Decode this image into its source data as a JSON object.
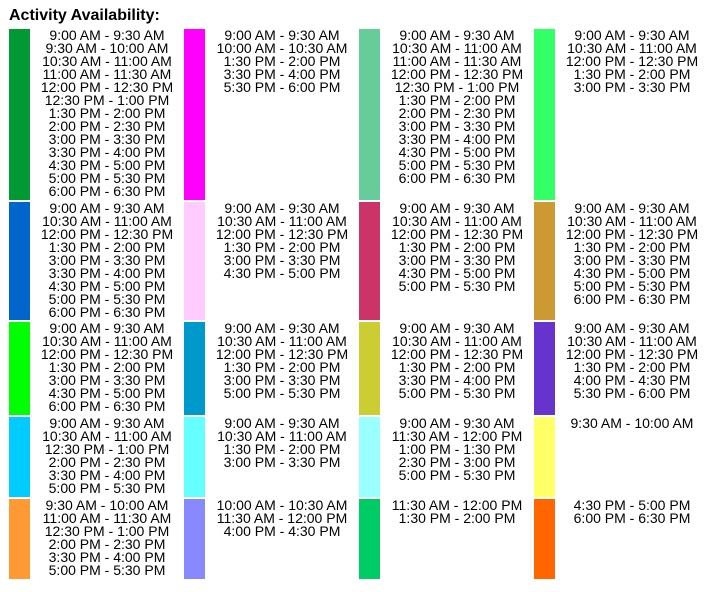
{
  "title": "Activity Availability:",
  "rows": [
    [
      {
        "color": "#009933",
        "times": [
          "9:00 AM - 9:30 AM",
          "9:30 AM - 10:00 AM",
          "10:30 AM - 11:00 AM",
          "11:00 AM - 11:30 AM",
          "12:00 PM - 12:30 PM",
          "12:30 PM - 1:00 PM",
          "1:30 PM - 2:00 PM",
          "2:00 PM - 2:30 PM",
          "3:00 PM - 3:30 PM",
          "3:30 PM - 4:00 PM",
          "4:30 PM - 5:00 PM",
          "5:00 PM - 5:30 PM",
          "6:00 PM - 6:30 PM"
        ]
      },
      {
        "color": "#ff00ff",
        "times": [
          "9:00 AM - 9:30 AM",
          "10:00 AM - 10:30 AM",
          "1:30 PM - 2:00 PM",
          "3:30 PM - 4:00 PM",
          "5:30 PM - 6:00 PM"
        ]
      },
      {
        "color": "#66cc99",
        "times": [
          "9:00 AM - 9:30 AM",
          "10:30 AM - 11:00 AM",
          "11:00 AM - 11:30 AM",
          "12:00 PM - 12:30 PM",
          "12:30 PM - 1:00 PM",
          "1:30 PM - 2:00 PM",
          "2:00 PM - 2:30 PM",
          "3:00 PM - 3:30 PM",
          "3:30 PM - 4:00 PM",
          "4:30 PM - 5:00 PM",
          "5:00 PM - 5:30 PM",
          "6:00 PM - 6:30 PM"
        ]
      },
      {
        "color": "#33ff66",
        "times": [
          "9:00 AM - 9:30 AM",
          "10:30 AM - 11:00 AM",
          "12:00 PM - 12:30 PM",
          "1:30 PM - 2:00 PM",
          "3:00 PM - 3:30 PM"
        ]
      }
    ],
    [
      {
        "color": "#0066cc",
        "times": [
          "9:00 AM - 9:30 AM",
          "10:30 AM - 11:00 AM",
          "12:00 PM - 12:30 PM",
          "1:30 PM - 2:00 PM",
          "3:00 PM - 3:30 PM",
          "3:30 PM - 4:00 PM",
          "4:30 PM - 5:00 PM",
          "5:00 PM - 5:30 PM",
          "6:00 PM - 6:30 PM"
        ]
      },
      {
        "color": "#ffccff",
        "times": [
          "9:00 AM - 9:30 AM",
          "10:30 AM - 11:00 AM",
          "12:00 PM - 12:30 PM",
          "1:30 PM - 2:00 PM",
          "3:00 PM - 3:30 PM",
          "4:30 PM - 5:00 PM"
        ]
      },
      {
        "color": "#cc3366",
        "times": [
          "9:00 AM - 9:30 AM",
          "10:30 AM - 11:00 AM",
          "12:00 PM - 12:30 PM",
          "1:30 PM - 2:00 PM",
          "3:00 PM - 3:30 PM",
          "4:30 PM - 5:00 PM",
          "5:00 PM - 5:30 PM"
        ]
      },
      {
        "color": "#cc9933",
        "times": [
          "9:00 AM - 9:30 AM",
          "10:30 AM - 11:00 AM",
          "12:00 PM - 12:30 PM",
          "1:30 PM - 2:00 PM",
          "3:00 PM - 3:30 PM",
          "4:30 PM - 5:00 PM",
          "5:00 PM - 5:30 PM",
          "6:00 PM - 6:30 PM"
        ]
      }
    ],
    [
      {
        "color": "#00ff00",
        "times": [
          "9:00 AM - 9:30 AM",
          "10:30 AM - 11:00 AM",
          "12:00 PM - 12:30 PM",
          "1:30 PM - 2:00 PM",
          "3:00 PM - 3:30 PM",
          "4:30 PM - 5:00 PM",
          "6:00 PM - 6:30 PM"
        ]
      },
      {
        "color": "#0099cc",
        "times": [
          "9:00 AM - 9:30 AM",
          "10:30 AM - 11:00 AM",
          "12:00 PM - 12:30 PM",
          "1:30 PM - 2:00 PM",
          "3:00 PM - 3:30 PM",
          "5:00 PM - 5:30 PM"
        ]
      },
      {
        "color": "#cccc33",
        "times": [
          "9:00 AM - 9:30 AM",
          "10:30 AM - 11:00 AM",
          "12:00 PM - 12:30 PM",
          "1:30 PM - 2:00 PM",
          "3:30 PM - 4:00 PM",
          "5:00 PM - 5:30 PM"
        ]
      },
      {
        "color": "#6633cc",
        "times": [
          "9:00 AM - 9:30 AM",
          "10:30 AM - 11:00 AM",
          "12:00 PM - 12:30 PM",
          "1:30 PM - 2:00 PM",
          "4:00 PM - 4:30 PM",
          "5:30 PM - 6:00 PM"
        ]
      }
    ],
    [
      {
        "color": "#00ccff",
        "times": [
          "9:00 AM - 9:30 AM",
          "10:30 AM - 11:00 AM",
          "12:30 PM - 1:00 PM",
          "2:00 PM - 2:30 PM",
          "3:30 PM - 4:00 PM",
          "5:00 PM - 5:30 PM"
        ]
      },
      {
        "color": "#66ffff",
        "times": [
          "9:00 AM - 9:30 AM",
          "10:30 AM - 11:00 AM",
          "1:30 PM - 2:00 PM",
          "3:00 PM - 3:30 PM"
        ]
      },
      {
        "color": "#99ffff",
        "times": [
          "9:00 AM - 9:30 AM",
          "11:30 AM - 12:00 PM",
          "1:00 PM - 1:30 PM",
          "2:30 PM - 3:00 PM",
          "5:00 PM - 5:30 PM"
        ]
      },
      {
        "color": "#ffff66",
        "times": [
          "9:30 AM - 10:00 AM"
        ]
      }
    ],
    [
      {
        "color": "#ff9933",
        "times": [
          "9:30 AM - 10:00 AM",
          "11:00 AM - 11:30 AM",
          "12:30 PM - 1:00 PM",
          "2:00 PM - 2:30 PM",
          "3:30 PM - 4:00 PM",
          "5:00 PM - 5:30 PM"
        ]
      },
      {
        "color": "#8888ff",
        "times": [
          "10:00 AM - 10:30 AM",
          "11:30 AM - 12:00 PM",
          "4:00 PM - 4:30 PM"
        ]
      },
      {
        "color": "#00cc66",
        "times": [
          "11:30 AM - 12:00 PM",
          "1:30 PM - 2:00 PM"
        ]
      },
      {
        "color": "#ff6600",
        "times": [
          "4:30 PM - 5:00 PM",
          "6:00 PM - 6:30 PM"
        ]
      }
    ]
  ]
}
